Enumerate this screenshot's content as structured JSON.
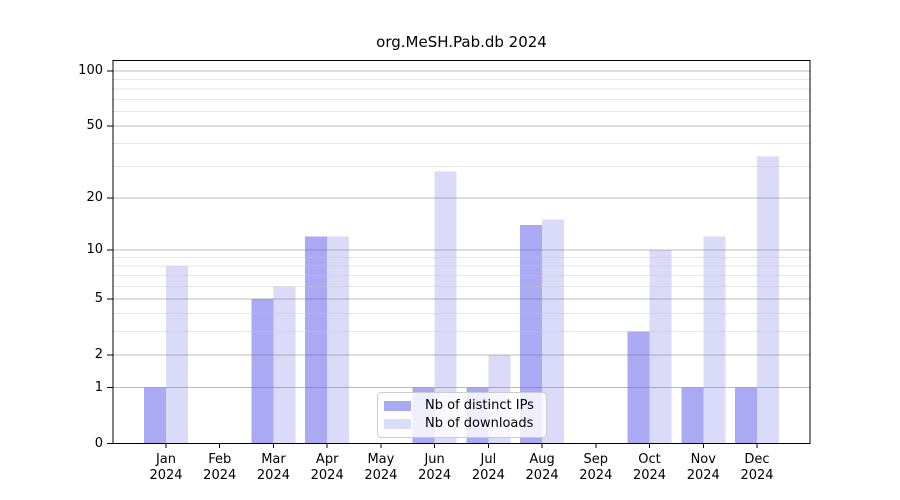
{
  "chart_data": {
    "type": "bar",
    "title": "org.MeSH.Pab.db 2024",
    "categories": [
      "Jan 2024",
      "Feb 2024",
      "Mar 2024",
      "Apr 2024",
      "May 2024",
      "Jun 2024",
      "Jul 2024",
      "Aug 2024",
      "Sep 2024",
      "Oct 2024",
      "Nov 2024",
      "Dec 2024"
    ],
    "series": [
      {
        "name": "Nb of distinct IPs",
        "color": "#a9a9f4",
        "values": [
          1,
          0,
          5,
          12,
          0,
          1,
          1,
          14,
          0,
          3,
          1,
          1
        ]
      },
      {
        "name": "Nb of downloads",
        "color": "#dadaf9",
        "values": [
          8,
          0,
          6,
          12,
          0,
          28,
          2,
          15,
          0,
          10,
          12,
          34
        ]
      }
    ],
    "yscale": "log1p",
    "ylim": [
      0,
      114
    ],
    "yticks": [
      0,
      1,
      2,
      5,
      10,
      20,
      50,
      100
    ],
    "minor_yticks": [
      3,
      4,
      6,
      7,
      8,
      9,
      30,
      40,
      60,
      70,
      80,
      90
    ],
    "xlabel": "",
    "ylabel": "",
    "grid": "horizontal",
    "legend_position": "lower center inside"
  },
  "colors": {
    "background": "#ffffff",
    "spine": "#000000",
    "tick": "#000000",
    "grid_major": "#777777",
    "grid_minor": "#c8c8c8",
    "legend_border": "#cccccc",
    "text": "#000000"
  }
}
